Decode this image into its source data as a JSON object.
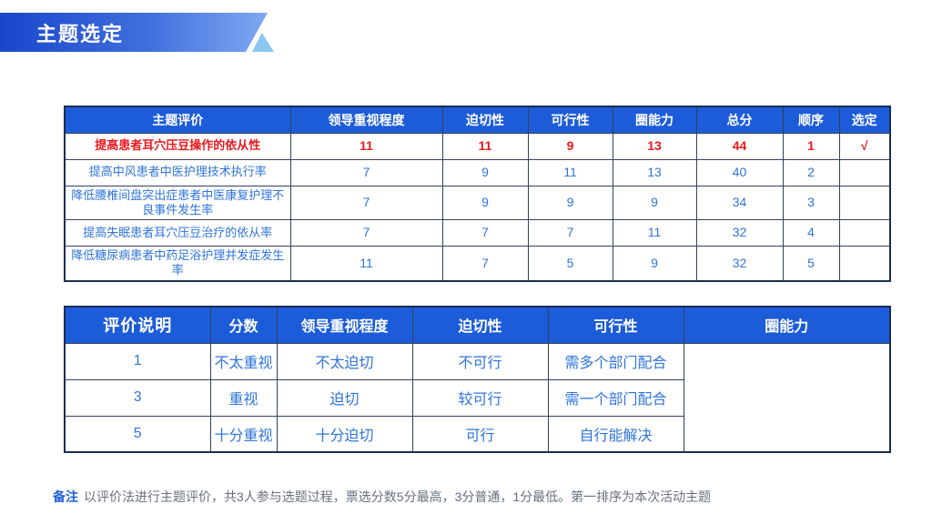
{
  "slide": {
    "title": "主题选定",
    "colors": {
      "banner_gradient_start": "#1a46cb",
      "banner_gradient_end": "#7fa8f2",
      "banner_triangle": "#8bc7ee",
      "table_header_blue": "#1d5cd8",
      "selected_row_red": "#e8191e",
      "data_text_blue": "#2f74d9",
      "table_border_navy": "#1c2d52"
    }
  },
  "selection_table": {
    "headers": [
      "主题评价",
      "领导重视程度",
      "迫切性",
      "可行性",
      "圈能力",
      "总分",
      "顺序",
      "选定"
    ],
    "rows": [
      {
        "highlight": true,
        "cells": [
          "提高患者耳穴压豆操作的依从性",
          "11",
          "11",
          "9",
          "13",
          "44",
          "1",
          "√"
        ]
      },
      {
        "highlight": false,
        "cells": [
          "提高中风患者中医护理技术执行率",
          "7",
          "9",
          "11",
          "13",
          "40",
          "2",
          ""
        ]
      },
      {
        "highlight": false,
        "cells": [
          "降低腰椎间盘突出症患者中医康复护理不良事件发生率",
          "7",
          "9",
          "9",
          "9",
          "34",
          "3",
          ""
        ]
      },
      {
        "highlight": false,
        "cells": [
          "提高失眠患者耳穴压豆治疗的依从率",
          "7",
          "7",
          "7",
          "11",
          "32",
          "4",
          ""
        ]
      },
      {
        "highlight": false,
        "cells": [
          "降低糖尿病患者中药足浴护理并发症发生率",
          "11",
          "7",
          "5",
          "9",
          "32",
          "5",
          ""
        ]
      }
    ]
  },
  "legend_table": {
    "row_header": "评价说明",
    "headers": [
      "分数",
      "领导重视程度",
      "迫切性",
      "可行性",
      "圈能力"
    ],
    "rows": [
      [
        "1",
        "不太重视",
        "不太迫切",
        "不可行",
        "需多个部门配合"
      ],
      [
        "3",
        "重视",
        "迫切",
        "较可行",
        "需一个部门配合"
      ],
      [
        "5",
        "十分重视",
        "十分迫切",
        "可行",
        "自行能解决"
      ]
    ]
  },
  "footnote": {
    "label": "备注",
    "text": "以评价法进行主题评价，共3人参与选题过程，票选分数5分最高，3分普通，1分最低。第一排序为本次活动主题"
  }
}
